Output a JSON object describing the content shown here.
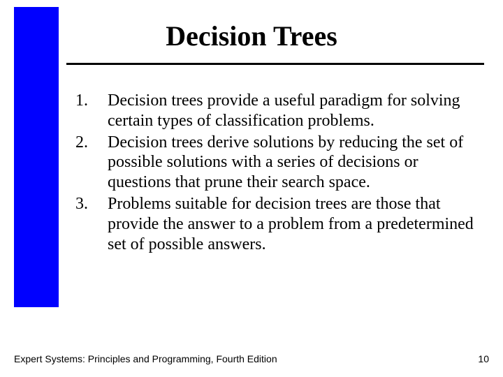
{
  "accent_color": "#0000ff",
  "title": "Decision Trees",
  "items": [
    "Decision trees provide a useful paradigm for solving certain types of classification problems.",
    "Decision trees derive solutions by reducing the set of possible solutions with a series of decisions or questions that prune their search space.",
    "Problems suitable for decision trees are those that provide the answer to a problem from a predetermined set of possible answers."
  ],
  "footer": "Expert Systems: Principles and Programming, Fourth Edition",
  "page_number": "10"
}
